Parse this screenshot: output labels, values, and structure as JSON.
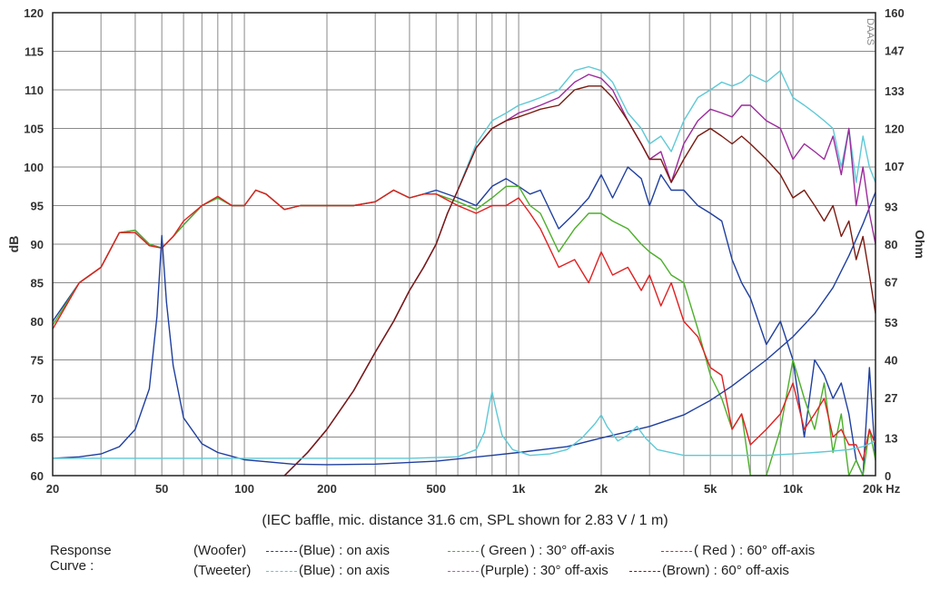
{
  "chart_data": {
    "type": "line",
    "x_scale": "log",
    "xlim": [
      20,
      20000
    ],
    "ylim": [
      60,
      120
    ],
    "y2lim": [
      0,
      160
    ],
    "ylabel": "dB",
    "y2label": "Ohm",
    "x_ticks": [
      20,
      50,
      100,
      200,
      500,
      1000,
      2000,
      5000,
      10000,
      20000
    ],
    "x_tick_labels": [
      "20",
      "50",
      "100",
      "200",
      "500",
      "1k",
      "2k",
      "5k",
      "10k",
      "20k Hz"
    ],
    "y_ticks": [
      60,
      65,
      70,
      75,
      80,
      85,
      90,
      95,
      100,
      105,
      110,
      115,
      120
    ],
    "y_tick_labels": [
      "60",
      "65",
      "70",
      "75",
      "80",
      "85",
      "90",
      "95",
      "100",
      "105",
      "110",
      "115",
      "120"
    ],
    "y2_ticks": [
      0,
      13,
      27,
      40,
      53,
      67,
      80,
      93,
      107,
      120,
      133,
      147,
      160
    ],
    "y2_tick_labels": [
      "0",
      "13",
      "27",
      "40",
      "53",
      "67",
      "80",
      "93",
      "107",
      "120",
      "133",
      "147",
      "160"
    ],
    "grid": true,
    "watermark": "DAAS",
    "series": [
      {
        "group": "woofer",
        "color": "#1f3f9f",
        "x": [
          20,
          25,
          30,
          35,
          40,
          45,
          50,
          55,
          60,
          70,
          80,
          90,
          100,
          110,
          120,
          140,
          160,
          200,
          250,
          300,
          350,
          400,
          450,
          500,
          600,
          700,
          800,
          900,
          1000,
          1100,
          1200,
          1400,
          1600,
          1800,
          2000,
          2200,
          2500,
          2800,
          3000,
          3300,
          3600,
          4000,
          4500,
          5000,
          5500,
          6000,
          6500,
          7000,
          8000,
          9000,
          10000,
          11000,
          12000,
          13000,
          14000,
          15000,
          16000,
          17000,
          18000,
          19000,
          20000
        ],
        "y": [
          80,
          85,
          87,
          91.5,
          91.8,
          90,
          89.5,
          91,
          92.5,
          95,
          96,
          95,
          95,
          97,
          96.5,
          94.5,
          95,
          95,
          95,
          95.5,
          97,
          96,
          96.5,
          97,
          96,
          95,
          97.5,
          98.5,
          97.5,
          96.5,
          97,
          92,
          94,
          96,
          99,
          96,
          100,
          98.5,
          95,
          99,
          97,
          97,
          95,
          94,
          93,
          88,
          85,
          83,
          77,
          80,
          75,
          65,
          75,
          73,
          70,
          72,
          68,
          62,
          60,
          74,
          62
        ]
      },
      {
        "group": "woofer",
        "color": "#4caf2a",
        "x": [
          20,
          25,
          30,
          35,
          40,
          45,
          50,
          55,
          60,
          70,
          80,
          90,
          100,
          110,
          120,
          140,
          160,
          200,
          250,
          300,
          350,
          400,
          450,
          500,
          600,
          700,
          800,
          900,
          1000,
          1100,
          1200,
          1400,
          1600,
          1800,
          2000,
          2200,
          2500,
          2800,
          3000,
          3300,
          3600,
          4000,
          4500,
          5000,
          5500,
          6000,
          6500,
          7000,
          8000,
          9000,
          10000,
          11000,
          12000,
          13000,
          14000,
          15000,
          16000,
          17000,
          18000,
          19000,
          20000
        ],
        "y": [
          79.5,
          85,
          87,
          91.5,
          91.8,
          90,
          89.5,
          91,
          92.5,
          95,
          96,
          95,
          95,
          97,
          96.5,
          94.5,
          95,
          95,
          95,
          95.5,
          97,
          96,
          96.5,
          96.5,
          95.5,
          94.5,
          96,
          97.5,
          97.5,
          95,
          94,
          89,
          92,
          94,
          94,
          93,
          92,
          90,
          89,
          88,
          86,
          85,
          79,
          73,
          70,
          66,
          68,
          60,
          60,
          66,
          75,
          70,
          66,
          72,
          63,
          68,
          60,
          62,
          60,
          66,
          62
        ]
      },
      {
        "group": "woofer",
        "color": "#e02020",
        "x": [
          20,
          25,
          30,
          35,
          40,
          45,
          50,
          55,
          60,
          70,
          80,
          90,
          100,
          110,
          120,
          140,
          160,
          200,
          250,
          300,
          350,
          400,
          450,
          500,
          600,
          700,
          800,
          900,
          1000,
          1100,
          1200,
          1400,
          1600,
          1800,
          2000,
          2200,
          2500,
          2800,
          3000,
          3300,
          3600,
          4000,
          4500,
          5000,
          5500,
          6000,
          6500,
          7000,
          8000,
          9000,
          10000,
          11000,
          12000,
          13000,
          14000,
          15000,
          16000,
          17000,
          18000,
          19000,
          20000
        ],
        "y": [
          79,
          85,
          87,
          91.5,
          91.5,
          89.8,
          89.5,
          91,
          93,
          95,
          96.2,
          95,
          95,
          97,
          96.5,
          94.5,
          95,
          95,
          95,
          95.5,
          97,
          96,
          96.5,
          96.5,
          95,
          94,
          95,
          95,
          96,
          94,
          92,
          87,
          88,
          85,
          89,
          86,
          87,
          84,
          86,
          82,
          85,
          80,
          78,
          74,
          73,
          66,
          68,
          64,
          66,
          68,
          72,
          66,
          68,
          70,
          65,
          66,
          64,
          64,
          62,
          66,
          64
        ]
      },
      {
        "group": "woofer-impedance",
        "color": "#1f3f9f",
        "axis": "y2",
        "x": [
          20,
          25,
          30,
          35,
          40,
          45,
          48,
          50,
          52,
          55,
          60,
          70,
          80,
          100,
          150,
          200,
          300,
          500,
          800,
          1000,
          1500,
          2000,
          3000,
          4000,
          5000,
          6000,
          8000,
          10000,
          12000,
          14000,
          16000,
          18000,
          20000
        ],
        "y": [
          6,
          6.5,
          7.5,
          10,
          16,
          30,
          55,
          83,
          60,
          38,
          20,
          11,
          8,
          5.5,
          4,
          3.8,
          4,
          5,
          7,
          8,
          10,
          13,
          17,
          21,
          26,
          31,
          40,
          48,
          56,
          65,
          76,
          87,
          98
        ]
      },
      {
        "group": "tweeter",
        "color": "#5ec9d6",
        "x": [
          140,
          170,
          200,
          250,
          300,
          350,
          400,
          450,
          500,
          550,
          600,
          700,
          800,
          900,
          1000,
          1100,
          1200,
          1400,
          1600,
          1800,
          2000,
          2200,
          2500,
          2800,
          3000,
          3300,
          3600,
          4000,
          4500,
          5000,
          5500,
          6000,
          6500,
          7000,
          8000,
          9000,
          10000,
          11000,
          12000,
          13000,
          14000,
          15000,
          16000,
          17000,
          18000,
          19000,
          20000
        ],
        "y": [
          60,
          63,
          66,
          71,
          76,
          80,
          84,
          87,
          90,
          94,
          97,
          103,
          106,
          107,
          108,
          108.5,
          109,
          110,
          112.5,
          113,
          112.5,
          111,
          107,
          105,
          103,
          104,
          102,
          106,
          109,
          110,
          111,
          110.5,
          111,
          112,
          111,
          112.5,
          109,
          108,
          107,
          106,
          105,
          100,
          105,
          98,
          104,
          100,
          98
        ]
      },
      {
        "group": "tweeter",
        "color": "#9c2a9c",
        "x": [
          140,
          170,
          200,
          250,
          300,
          350,
          400,
          450,
          500,
          550,
          600,
          700,
          800,
          900,
          1000,
          1100,
          1200,
          1400,
          1600,
          1800,
          2000,
          2200,
          2500,
          2800,
          3000,
          3300,
          3600,
          4000,
          4500,
          5000,
          5500,
          6000,
          6500,
          7000,
          8000,
          9000,
          10000,
          11000,
          12000,
          13000,
          14000,
          15000,
          16000,
          17000,
          18000,
          19000,
          20000
        ],
        "y": [
          60,
          63,
          66,
          71,
          76,
          80,
          84,
          87,
          90,
          94,
          97,
          102.5,
          105,
          106,
          107,
          107.5,
          108,
          109,
          111,
          112,
          111.5,
          110,
          106,
          103,
          101,
          102,
          98,
          103,
          106,
          107.5,
          107,
          106.5,
          108,
          108,
          106,
          105,
          101,
          103,
          102,
          101,
          104,
          99,
          105,
          95,
          100,
          94,
          90
        ]
      },
      {
        "group": "tweeter",
        "color": "#7a1a10",
        "x": [
          140,
          170,
          200,
          250,
          300,
          350,
          400,
          450,
          500,
          550,
          600,
          700,
          800,
          900,
          1000,
          1100,
          1200,
          1400,
          1600,
          1800,
          2000,
          2200,
          2500,
          2800,
          3000,
          3300,
          3600,
          4000,
          4500,
          5000,
          5500,
          6000,
          6500,
          7000,
          8000,
          9000,
          10000,
          11000,
          12000,
          13000,
          14000,
          15000,
          16000,
          17000,
          18000,
          19000,
          20000
        ],
        "y": [
          60,
          63,
          66,
          71,
          76,
          80,
          84,
          87,
          90,
          94,
          97,
          102.5,
          105,
          106,
          106.5,
          107,
          107.5,
          108,
          110,
          110.5,
          110.5,
          109,
          106,
          103,
          101,
          101,
          98,
          101,
          104,
          105,
          104,
          103,
          104,
          103,
          101,
          99,
          96,
          97,
          95,
          93,
          95,
          91,
          93,
          88,
          91,
          86,
          81
        ]
      },
      {
        "group": "tweeter-impedance",
        "color": "#5ec9d6",
        "axis": "y2",
        "x": [
          20,
          30,
          40,
          60,
          100,
          200,
          400,
          600,
          700,
          750,
          780,
          800,
          830,
          870,
          950,
          1100,
          1300,
          1500,
          1700,
          1900,
          2000,
          2100,
          2300,
          2500,
          2700,
          2900,
          3200,
          4000,
          5000,
          6000,
          8000,
          10000,
          12000,
          14000,
          16000,
          18000,
          20000
        ],
        "y": [
          6,
          6,
          6,
          6,
          6,
          6,
          6,
          6.5,
          9,
          15,
          24,
          29,
          22,
          14,
          9,
          7,
          7.5,
          9,
          13,
          18,
          21,
          17,
          12,
          14,
          17,
          13,
          9,
          7,
          7,
          7,
          7,
          7.5,
          8,
          8.5,
          9,
          10,
          12
        ]
      }
    ]
  },
  "ticks_right_unit": "Ohm",
  "caption": "(IEC baffle, mic. distance 31.6 cm, SPL shown for 2.83 V / 1 m)",
  "legend": {
    "title": "Response Curve :",
    "rows": [
      {
        "group_label": "(Woofer)",
        "items": [
          {
            "text": "(Blue)  : on axis",
            "color": "#1f3f9f"
          },
          {
            "text": "( Green ) : 30° off-axis",
            "color": "#4caf2a"
          },
          {
            "text": "( Red ) : 60° off-axis",
            "color": "#e02020"
          }
        ]
      },
      {
        "group_label": "(Tweeter)",
        "items": [
          {
            "text": "(Blue) : on axis",
            "color": "#5ec9d6"
          },
          {
            "text": "(Purple) : 30° off-axis",
            "color": "#b45ab4"
          },
          {
            "text": "(Brown) : 60° off-axis",
            "color": "#7a1a10"
          }
        ]
      }
    ]
  }
}
